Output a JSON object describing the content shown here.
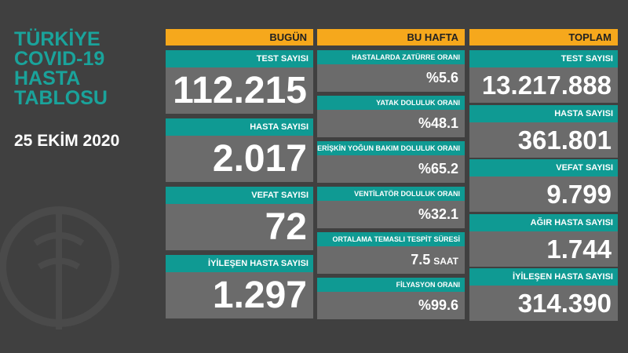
{
  "title_lines": [
    "TÜRKİYE",
    "COVID-19",
    "HASTA",
    "TABLOSU"
  ],
  "date": "25 EKİM 2020",
  "columns": [
    {
      "header": "BUGÜN",
      "items": [
        {
          "label": "TEST SAYISI",
          "value": "112.215"
        },
        {
          "label": "HASTA SAYISI",
          "value": "2.017"
        },
        {
          "label": "VEFAT SAYISI",
          "value": "72"
        },
        {
          "label": "İYİLEŞEN HASTA SAYISI",
          "value": "1.297"
        }
      ]
    },
    {
      "header": "BU HAFTA",
      "items": [
        {
          "label": "HASTALARDA ZATÜRRE ORANI",
          "value": "%5.6"
        },
        {
          "label": "YATAK DOLULUK ORANI",
          "value": "%48.1"
        },
        {
          "label": "ERİŞKİN YOĞUN BAKIM DOLULUK ORANI",
          "value": "%65.2"
        },
        {
          "label": "VENTİLATÖR DOLULUK ORANI",
          "value": "%32.1"
        },
        {
          "label": "ORTALAMA TEMASLI TESPİT SÜRESİ",
          "value": "7.5",
          "unit": "SAAT"
        },
        {
          "label": "FİLYASYON ORANI",
          "value": "%99.6"
        }
      ]
    },
    {
      "header": "TOPLAM",
      "items": [
        {
          "label": "TEST SAYISI",
          "value": "13.217.888"
        },
        {
          "label": "HASTA SAYISI",
          "value": "361.801"
        },
        {
          "label": "VEFAT SAYISI",
          "value": "9.799"
        },
        {
          "label": "AĞIR HASTA SAYISI",
          "value": "1.744"
        },
        {
          "label": "İYİLEŞEN HASTA SAYISI",
          "value": "314.390"
        }
      ]
    }
  ]
}
